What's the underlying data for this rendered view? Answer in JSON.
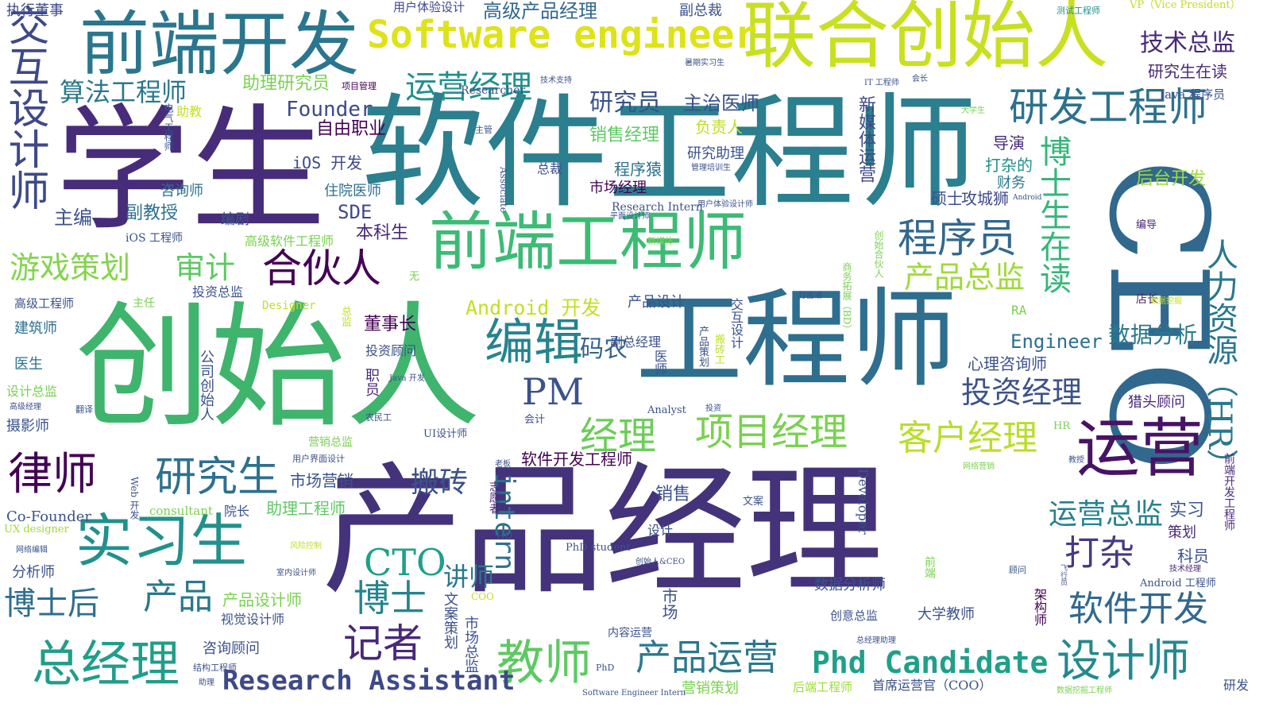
{
  "words": [
    {
      "text": "产品经理",
      "color": "#44337a"
    },
    {
      "text": "软件工程师",
      "color": "#2b7f8e"
    },
    {
      "text": "创始人",
      "color": "#3fb46d"
    },
    {
      "text": "学生",
      "color": "#472c7a"
    },
    {
      "text": "工程师",
      "color": "#2e6e8e"
    },
    {
      "text": "CEO",
      "color": "#31688e"
    },
    {
      "text": "联合创始人",
      "color": "#c8e020"
    },
    {
      "text": "前端开发",
      "color": "#2a768e"
    },
    {
      "text": "前端工程师",
      "color": "#3cbb75"
    },
    {
      "text": "Software engineer",
      "color": "#dde318"
    },
    {
      "text": "运营",
      "color": "#471365"
    },
    {
      "text": "实习生",
      "color": "#21918c"
    },
    {
      "text": "研发工程师",
      "color": "#2c728e"
    },
    {
      "text": "交互设计师",
      "color": "#3e4989"
    },
    {
      "text": "项目经理",
      "color": "#7ad151"
    },
    {
      "text": "客户经理",
      "color": "#b8de29"
    },
    {
      "text": "编辑",
      "color": "#25848e"
    },
    {
      "text": "总经理",
      "color": "#1f9e89"
    },
    {
      "text": "教师",
      "color": "#5ec962"
    },
    {
      "text": "设计师",
      "color": "#23898e"
    },
    {
      "text": "产品运营",
      "color": "#2a788e"
    },
    {
      "text": "Phd Candidate",
      "color": "#1fa088"
    },
    {
      "text": "研究生",
      "color": "#2d718e"
    },
    {
      "text": "律师",
      "color": "#440154"
    },
    {
      "text": "程序员",
      "color": "#31688e"
    },
    {
      "text": "合伙人",
      "color": "#440154"
    },
    {
      "text": "博士生在读",
      "color": "#35b779"
    },
    {
      "text": "人力资源（HR）",
      "color": "#2a788e"
    },
    {
      "text": "PM",
      "color": "#3b528b"
    },
    {
      "text": "CTO",
      "color": "#1fa088"
    },
    {
      "text": "博士",
      "color": "#25848e"
    },
    {
      "text": "记者",
      "color": "#482878"
    },
    {
      "text": "打杂",
      "color": "#443a83"
    },
    {
      "text": "软件开发",
      "color": "#31688e"
    },
    {
      "text": "Research Assistant",
      "color": "#3e4989"
    },
    {
      "text": "投资经理",
      "color": "#3b528b"
    },
    {
      "text": "游戏策划",
      "color": "#84d44b"
    },
    {
      "text": "审计",
      "color": "#5ec962"
    },
    {
      "text": "运营经理",
      "color": "#21908d"
    },
    {
      "text": "算法工程师",
      "color": "#2a788e"
    },
    {
      "text": "intern",
      "color": "#2c728e"
    },
    {
      "text": "经理",
      "color": "#6ccd5a"
    },
    {
      "text": "运营总监",
      "color": "#26828e"
    },
    {
      "text": "博士后",
      "color": "#2e6e8e"
    },
    {
      "text": "产品",
      "color": "#2a788e"
    },
    {
      "text": "技术总监",
      "color": "#482878"
    },
    {
      "text": "Founder",
      "color": "#3e4989"
    },
    {
      "text": "研究员",
      "color": "#3b528b"
    },
    {
      "text": "产品总监",
      "color": "#a0da39"
    },
    {
      "text": "Android 开发",
      "color": "#c2df23"
    },
    {
      "text": "搬砖",
      "color": "#3b528b"
    },
    {
      "text": "码农",
      "color": "#33638d"
    },
    {
      "text": "讲师",
      "color": "#2a788e"
    },
    {
      "text": "数据分析",
      "color": "#2a788e"
    },
    {
      "text": "Engineer",
      "color": "#2d708e"
    },
    {
      "text": "高级产品经理",
      "color": "#31688e"
    },
    {
      "text": "执行董事",
      "color": "#3e4989"
    },
    {
      "text": "用户体验设计",
      "color": "#3e4989"
    },
    {
      "text": "副总裁",
      "color": "#3b528b"
    },
    {
      "text": "VP（Vice President）",
      "color": "#bddf26"
    },
    {
      "text": "测试工程师",
      "color": "#21918c"
    },
    {
      "text": "研究生在读",
      "color": "#482878"
    },
    {
      "text": "Java 程序员",
      "color": "#3b528b"
    },
    {
      "text": "主治医师",
      "color": "#3b528b"
    },
    {
      "text": "助理研究员",
      "color": "#7ad151"
    },
    {
      "text": "项目管理",
      "color": "#440154"
    },
    {
      "text": "自由职业",
      "color": "#440154"
    },
    {
      "text": "Researcher",
      "color": "#3b528b"
    },
    {
      "text": "助教",
      "color": "#c2df23"
    },
    {
      "text": "销售经理",
      "color": "#5ec962"
    },
    {
      "text": "负责人",
      "color": "#bddf26"
    },
    {
      "text": "研究助理",
      "color": "#3b528b"
    },
    {
      "text": "新媒体运营",
      "color": "#3e4989"
    },
    {
      "text": "导演",
      "color": "#482878"
    },
    {
      "text": "打杂的",
      "color": "#21918c"
    },
    {
      "text": "财务",
      "color": "#2a788e"
    },
    {
      "text": "后台开发",
      "color": "#a0da39"
    },
    {
      "text": "咨询师",
      "color": "#2c728e"
    },
    {
      "text": "iOS 开发",
      "color": "#3e4989"
    },
    {
      "text": "程序猿",
      "color": "#2d708e"
    },
    {
      "text": "总裁",
      "color": "#3b528b"
    },
    {
      "text": "市场经理",
      "color": "#440154"
    },
    {
      "text": "硕士",
      "color": "#3b528b"
    },
    {
      "text": "攻城狮",
      "color": "#3e4989"
    },
    {
      "text": "住院医师",
      "color": "#2d708e"
    },
    {
      "text": "SDE",
      "color": "#3e4989"
    },
    {
      "text": "主编",
      "color": "#3b528b"
    },
    {
      "text": "副教授",
      "color": "#2d708e"
    },
    {
      "text": "编剧",
      "color": "#3b528b"
    },
    {
      "text": "本科生",
      "color": "#482878"
    },
    {
      "text": "iOS 工程师",
      "color": "#3b528b"
    },
    {
      "text": "高级软件工程师",
      "color": "#7ad151"
    },
    {
      "text": "Research Intern",
      "color": "#3b528b"
    },
    {
      "text": "编导",
      "color": "#482878"
    },
    {
      "text": "高级工程师",
      "color": "#3b528b"
    },
    {
      "text": "主任",
      "color": "#7ad151"
    },
    {
      "text": "投资总监",
      "color": "#3b528b"
    },
    {
      "text": "Designer",
      "color": "#c2df23"
    },
    {
      "text": "产品设计",
      "color": "#3b528b"
    },
    {
      "text": "店长",
      "color": "#482878"
    },
    {
      "text": "RA",
      "color": "#7ad151"
    },
    {
      "text": "建筑师",
      "color": "#2d708e"
    },
    {
      "text": "董事长",
      "color": "#440154"
    },
    {
      "text": "副总经理",
      "color": "#3b528b"
    },
    {
      "text": "投资顾问",
      "color": "#3b528b"
    },
    {
      "text": "医生",
      "color": "#2d708e"
    },
    {
      "text": "设计总监",
      "color": "#7ad151"
    },
    {
      "text": "心理咨询师",
      "color": "#3b528b"
    },
    {
      "text": "猎头顾问",
      "color": "#482878"
    },
    {
      "text": "摄影师",
      "color": "#3b528b"
    },
    {
      "text": "职员",
      "color": "#482878"
    },
    {
      "text": "公司创始人",
      "color": "#3b528b"
    },
    {
      "text": "Analyst",
      "color": "#3b528b"
    },
    {
      "text": "营销总监",
      "color": "#7ad151"
    },
    {
      "text": "UI设计师",
      "color": "#3b528b"
    },
    {
      "text": "市场营销",
      "color": "#3b528b"
    },
    {
      "text": "软件开发工程师",
      "color": "#440154"
    },
    {
      "text": "HR",
      "color": "#7ad151"
    },
    {
      "text": "销售",
      "color": "#3b528b"
    },
    {
      "text": "Co-Founder",
      "color": "#3b528b"
    },
    {
      "text": "UX designer",
      "color": "#a0da39"
    },
    {
      "text": "consultant",
      "color": "#7ad151"
    },
    {
      "text": "院长",
      "color": "#3b528b"
    },
    {
      "text": "助理工程师",
      "color": "#5ec962"
    },
    {
      "text": "文案",
      "color": "#3b528b"
    },
    {
      "text": "实习",
      "color": "#3b528b"
    },
    {
      "text": "策划",
      "color": "#482878"
    },
    {
      "text": "Developer",
      "color": "#3b528b"
    },
    {
      "text": "分析师",
      "color": "#3b528b"
    },
    {
      "text": "科员",
      "color": "#3b528b"
    },
    {
      "text": "RD",
      "color": "#3b528b"
    },
    {
      "text": "PhD student",
      "color": "#3b528b"
    },
    {
      "text": "设计",
      "color": "#3b528b"
    },
    {
      "text": "产品设计师",
      "color": "#7ad151"
    },
    {
      "text": "数据分析师",
      "color": "#3b528b"
    },
    {
      "text": "视觉设计师",
      "color": "#3b528b"
    },
    {
      "text": "COO",
      "color": "#c2df23"
    },
    {
      "text": "市场",
      "color": "#3b528b"
    },
    {
      "text": "创意总监",
      "color": "#3b528b"
    },
    {
      "text": "大学教师",
      "color": "#3b528b"
    },
    {
      "text": "Android 工程师",
      "color": "#3b528b"
    },
    {
      "text": "内容运营",
      "color": "#3b528b"
    },
    {
      "text": "咨询顾问",
      "color": "#3b528b"
    },
    {
      "text": "营销策划",
      "color": "#7ad151"
    },
    {
      "text": "后端工程师",
      "color": "#a0da39"
    },
    {
      "text": "首席运营官（COO）",
      "color": "#3b528b"
    },
    {
      "text": "研发",
      "color": "#3b528b"
    },
    {
      "text": "Software Engineer Intern",
      "color": "#3b528b"
    },
    {
      "text": "PhD",
      "color": "#3b528b"
    },
    {
      "text": "结构工程师",
      "color": "#3b528b"
    },
    {
      "text": "助理",
      "color": "#3b528b"
    },
    {
      "text": "数据挖掘工程师",
      "color": "#7ad151"
    },
    {
      "text": "总经理助理",
      "color": "#3b528b"
    },
    {
      "text": "文案策划",
      "color": "#3b528b"
    },
    {
      "text": "市场总监",
      "color": "#3b528b"
    },
    {
      "text": "架构师",
      "color": "#440154"
    },
    {
      "text": "前端开发工程师",
      "color": "#482878"
    },
    {
      "text": "医师",
      "color": "#3b528b"
    },
    {
      "text": "产品策划",
      "color": "#3b528b"
    },
    {
      "text": "搬砖工",
      "color": "#c2df23"
    },
    {
      "text": "交互设计",
      "color": "#3b528b"
    },
    {
      "text": "商务拓展（BD）",
      "color": "#7ad151"
    },
    {
      "text": "创始合伙人",
      "color": "#7ad151"
    },
    {
      "text": "Associate",
      "color": "#3b528b"
    },
    {
      "text": "电气工程师",
      "color": "#3b528b"
    },
    {
      "text": "总监",
      "color": "#c2df23"
    },
    {
      "text": "志愿者",
      "color": "#482878"
    },
    {
      "text": "前端",
      "color": "#7ad151"
    },
    {
      "text": "技术支持",
      "color": "#3b528b"
    },
    {
      "text": "会长",
      "color": "#3b528b"
    },
    {
      "text": "主管",
      "color": "#3b528b"
    },
    {
      "text": "大学生",
      "color": "#7ad151"
    },
    {
      "text": "IT 工程师",
      "color": "#3b528b"
    },
    {
      "text": "管理培训生",
      "color": "#3b528b"
    },
    {
      "text": "Android",
      "color": "#3b528b"
    },
    {
      "text": "平面设计师",
      "color": "#3b528b"
    },
    {
      "text": "用户体验设计师",
      "color": "#3b528b"
    },
    {
      "text": "新媒体",
      "color": "#7ad151"
    },
    {
      "text": "打酱油",
      "color": "#3b528b"
    },
    {
      "text": "数据挖掘",
      "color": "#c2df23"
    },
    {
      "text": "无",
      "color": "#7ad151"
    },
    {
      "text": "翻译",
      "color": "#3b528b"
    },
    {
      "text": "农民工",
      "color": "#3b528b"
    },
    {
      "text": "投资",
      "color": "#3b528b"
    },
    {
      "text": "会计",
      "color": "#3b528b"
    },
    {
      "text": "老板",
      "color": "#3b528b"
    },
    {
      "text": "网络营销",
      "color": "#7ad151"
    },
    {
      "text": "教授",
      "color": "#3b528b"
    },
    {
      "text": "用户界面设计",
      "color": "#3b528b"
    },
    {
      "text": "Web 开发",
      "color": "#3b528b"
    },
    {
      "text": "网络编辑",
      "color": "#3b528b"
    },
    {
      "text": "风险控制",
      "color": "#c2df23"
    },
    {
      "text": "室内设计师",
      "color": "#3b528b"
    },
    {
      "text": "顾问",
      "color": "#3b528b"
    },
    {
      "text": "飞行员",
      "color": "#3b528b"
    },
    {
      "text": "技术经理",
      "color": "#482878"
    },
    {
      "text": "创始人&CEO",
      "color": "#3b528b"
    },
    {
      "text": "高级经理",
      "color": "#3b528b"
    },
    {
      "text": "暑期实习生",
      "color": "#3b528b"
    },
    {
      "text": "Java 开发",
      "color": "#3b528b"
    }
  ]
}
